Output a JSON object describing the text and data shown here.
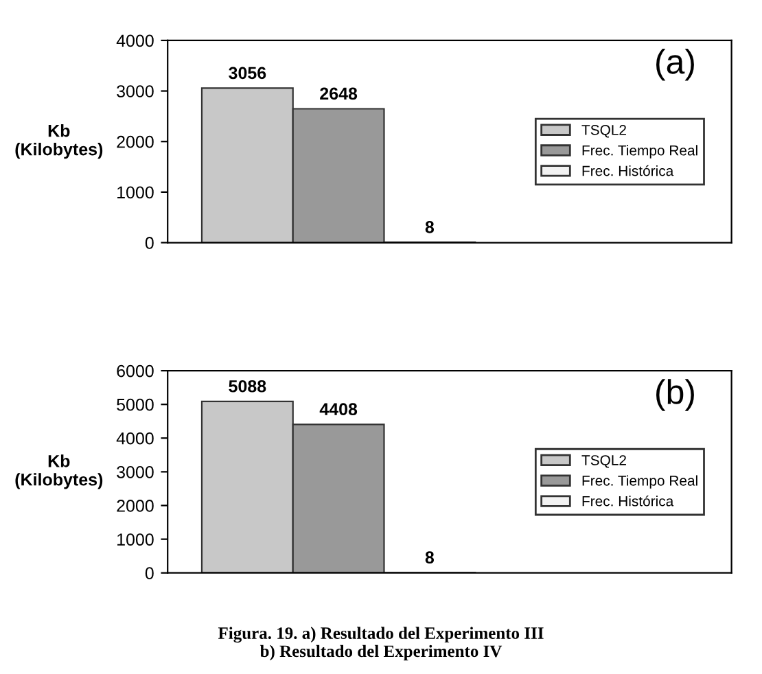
{
  "chart_data": [
    {
      "type": "bar",
      "title": "(a)",
      "ylabel": "Kb\n(Kilobytes)",
      "categories": [
        null
      ],
      "ylim": [
        0,
        4000
      ],
      "yticks": [
        0,
        1000,
        2000,
        3000,
        4000
      ],
      "data_labels": true,
      "grid": false,
      "legend": "right",
      "series": [
        {
          "name": "TSQL2",
          "color": "#c8c8c8",
          "values": [
            3056
          ]
        },
        {
          "name": "Frec. Tiempo Real",
          "color": "#999999",
          "values": [
            2648
          ]
        },
        {
          "name": "Frec. Histórica",
          "color": "#f2f2f2",
          "values": [
            8
          ]
        }
      ]
    },
    {
      "type": "bar",
      "title": "(b)",
      "ylabel": "Kb\n(Kilobytes)",
      "categories": [
        null
      ],
      "ylim": [
        0,
        6000
      ],
      "yticks": [
        0,
        1000,
        2000,
        3000,
        4000,
        5000,
        6000
      ],
      "data_labels": true,
      "grid": false,
      "legend": "right",
      "series": [
        {
          "name": "TSQL2",
          "color": "#c8c8c8",
          "values": [
            5088
          ]
        },
        {
          "name": "Frec. Tiempo Real",
          "color": "#999999",
          "values": [
            4408
          ]
        },
        {
          "name": "Frec. Histórica",
          "color": "#f2f2f2",
          "values": [
            8
          ]
        }
      ],
      "annotations": [
        "Figura. 19. a) Resultado del Experimento III\nb) Resultado del Experimento IV"
      ]
    }
  ]
}
